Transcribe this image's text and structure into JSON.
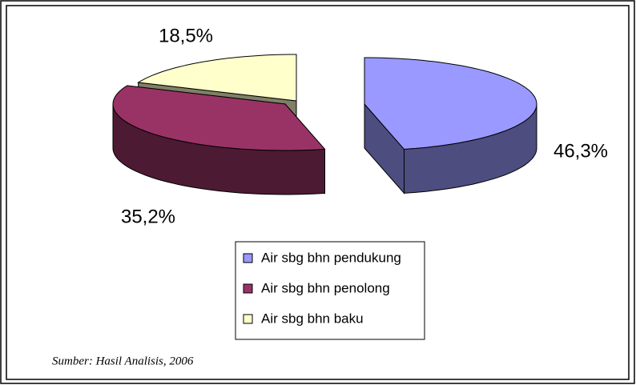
{
  "chart_data": {
    "type": "pie3d",
    "categories": [
      "Air sbg bhn pendukung",
      "Air sbg bhn penolong",
      "Air sbg bhn baku"
    ],
    "values": [
      46.3,
      35.2,
      18.5
    ],
    "value_labels": [
      "46,3%",
      "35,2%",
      "18,5%"
    ],
    "colors": [
      "#9999ff",
      "#993366",
      "#ffffcc"
    ],
    "legend": "bottom",
    "source": "Sumber: Hasil Analisis, 2006"
  }
}
